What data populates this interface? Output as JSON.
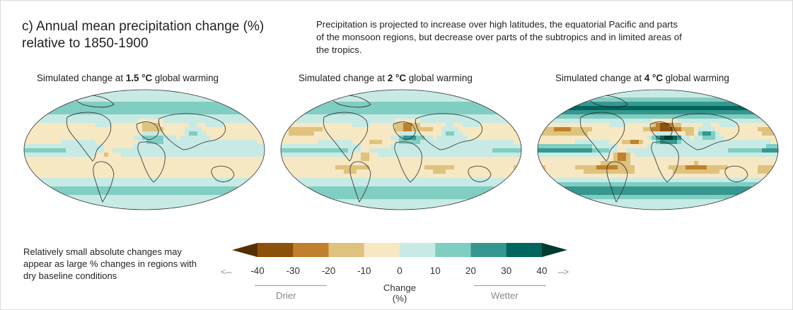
{
  "title_line1": "c) Annual mean precipitation change (%)",
  "title_line2": "relative to 1850-1900",
  "description": "Precipitation is projected to increase over high latitudes, the equatorial Pacific and parts of the monsoon regions, but decrease over parts of the subtropics and in limited areas of the tropics.",
  "panels": [
    {
      "prefix": "Simulated change at ",
      "level": "1.5 °C",
      "suffix": " global warming",
      "intensity": 1.0
    },
    {
      "prefix": "Simulated change at ",
      "level": "2 °C",
      "suffix": " global warming",
      "intensity": 1.35
    },
    {
      "prefix": "Simulated change at ",
      "level": "4 °C",
      "suffix": " global warming",
      "intensity": 2.3
    }
  ],
  "note": "Relatively small absolute changes may appear as large % changes in regions with dry baseline conditions",
  "legend": {
    "ticks": [
      "-40",
      "-30",
      "-20",
      "-10",
      "0",
      "10",
      "20",
      "30",
      "40"
    ],
    "colors": [
      "#543005",
      "#8c510a",
      "#bf812d",
      "#dfc27d",
      "#f6e8c3",
      "#c7eae5",
      "#80cdc1",
      "#35978f",
      "#01665e",
      "#003c30"
    ],
    "label": "Change (%)",
    "drier": "Drier",
    "wetter": "Wetter",
    "left_arrow": "<---",
    "right_arrow": "--->"
  }
}
